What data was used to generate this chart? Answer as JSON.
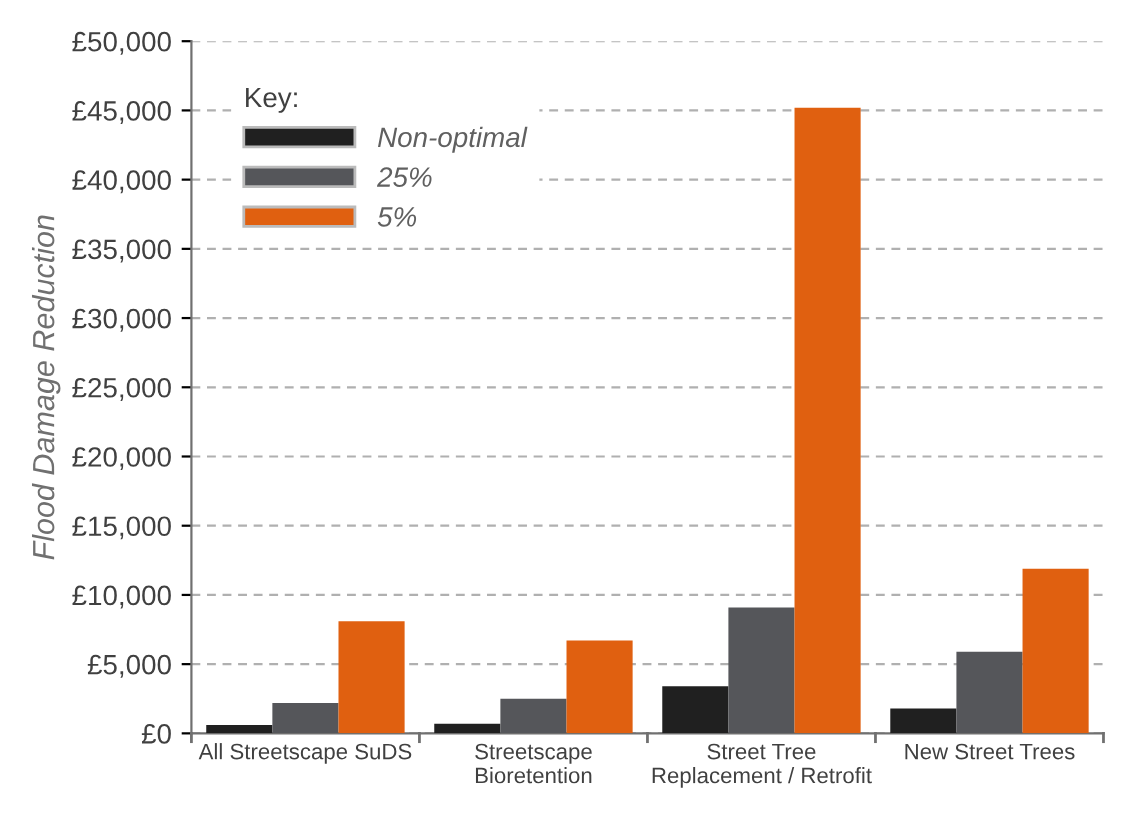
{
  "chart_data": {
    "type": "bar",
    "ylabel": "Flood Damage Reduction",
    "legend_title": "Key:",
    "categories": [
      "All Streetscape SuDS",
      "Streetscape\nBioretention",
      "Street Tree\nReplacement / Retrofit",
      "New Street Trees"
    ],
    "series": [
      {
        "name": "Non-optimal",
        "color": "#202020",
        "values": [
          600,
          700,
          3400,
          1800
        ]
      },
      {
        "name": "25%",
        "color": "#55565a",
        "values": [
          2200,
          2500,
          9100,
          5900
        ]
      },
      {
        "name": "5%",
        "color": "#e06010",
        "values": [
          8100,
          6700,
          45200,
          11900
        ]
      }
    ],
    "ylim": [
      0,
      50000
    ],
    "yticks": [
      {
        "value": 0,
        "label": "£0"
      },
      {
        "value": 5000,
        "label": "£5,000"
      },
      {
        "value": 10000,
        "label": "£10,000"
      },
      {
        "value": 15000,
        "label": "£15,000"
      },
      {
        "value": 20000,
        "label": "£20,000"
      },
      {
        "value": 25000,
        "label": "£25,000"
      },
      {
        "value": 30000,
        "label": "£30,000"
      },
      {
        "value": 35000,
        "label": "£35,000"
      },
      {
        "value": 40000,
        "label": "£40,000"
      },
      {
        "value": 45000,
        "label": "£45,000"
      },
      {
        "value": 50000,
        "label": "£50,000"
      }
    ],
    "grid": "y",
    "legend": "top left"
  }
}
